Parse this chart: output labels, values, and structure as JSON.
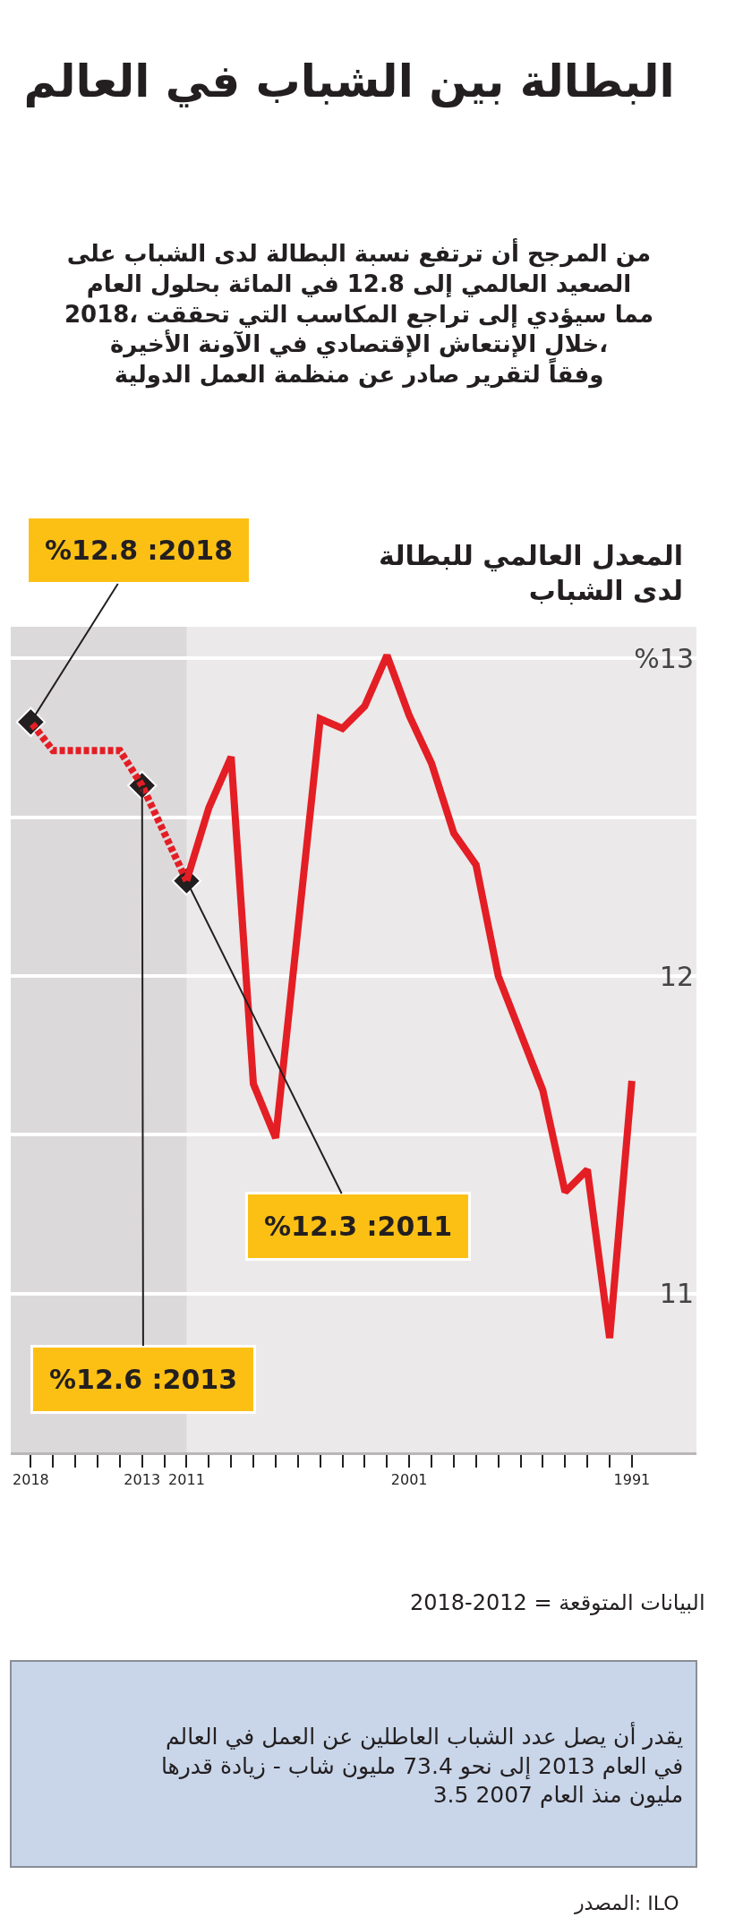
{
  "chart_data": {
    "type": "line",
    "title": "البطالة بين الشباب في العالم",
    "subtitle": "من المرجح أن ترتفع نسبة البطالة لدى الشباب على الصعيد العالمي إلى 12.8 في المائة بحلول العام 2018، مما سيؤدي إلى تراجع المكاسب التي تحققت خلال الإنتعاش الإقتصادي في الآونة الأخيرة، وفقاً لتقرير صادر عن منظمة العمل الدولية",
    "ylabel": "المعدل العالمي للبطالة لدى الشباب",
    "series": [
      {
        "color": "#e31e24",
        "line_style": "solid",
        "x": [
          1991,
          1992,
          1993,
          1994,
          1995,
          1996,
          1997,
          1998,
          1999,
          2000,
          2001,
          2002,
          2003,
          2004,
          2005,
          2006,
          2007,
          2008,
          2009,
          2010,
          2011
        ],
        "values": [
          11.67,
          10.86,
          11.39,
          11.32,
          11.64,
          11.82,
          12.0,
          12.35,
          12.45,
          12.67,
          12.82,
          13.01,
          12.85,
          12.78,
          12.81,
          12.15,
          11.49,
          11.66,
          12.69,
          12.53,
          12.3
        ]
      },
      {
        "color": "#e31e24",
        "line_style": "dashed",
        "x": [
          2011,
          2012,
          2013,
          2014,
          2015,
          2016,
          2017,
          2018
        ],
        "values": [
          12.3,
          12.45,
          12.6,
          12.71,
          12.71,
          12.71,
          12.71,
          12.8
        ]
      },
      {
        "type": "scatter",
        "color": "#231f20",
        "marker": "diamond",
        "x": [
          2011,
          2013,
          2018
        ],
        "values": [
          12.3,
          12.6,
          12.8
        ]
      }
    ],
    "xlim": [
      2018.9,
      1988.1
    ],
    "xticks": [
      1991,
      {
        "value": 1992,
        "label": null
      },
      {
        "value": 1993,
        "label": null
      },
      {
        "value": 1994,
        "label": null
      },
      {
        "value": 1995,
        "label": null
      },
      {
        "value": 1996,
        "label": null
      },
      {
        "value": 1997,
        "label": null
      },
      {
        "value": 1998,
        "label": null
      },
      {
        "value": 1999,
        "label": null
      },
      {
        "value": 2000,
        "label": null
      },
      2001,
      {
        "value": 2002,
        "label": null
      },
      {
        "value": 2003,
        "label": null
      },
      {
        "value": 2004,
        "label": null
      },
      {
        "value": 2005,
        "label": null
      },
      {
        "value": 2006,
        "label": null
      },
      {
        "value": 2007,
        "label": null
      },
      {
        "value": 2008,
        "label": null
      },
      {
        "value": 2009,
        "label": null
      },
      {
        "value": 2010,
        "label": null
      },
      2011,
      {
        "value": 2012,
        "label": null
      },
      2013,
      {
        "value": 2014,
        "label": null
      },
      {
        "value": 2015,
        "label": null
      },
      {
        "value": 2016,
        "label": null
      },
      {
        "value": 2017,
        "label": null
      },
      2018
    ],
    "ylim": [
      10.5,
      13.1
    ],
    "yticks": [
      {
        "value": 11,
        "label": "11"
      },
      {
        "value": 11.5,
        "label": null
      },
      {
        "value": 12,
        "label": "12"
      },
      {
        "value": 12.5,
        "label": null
      },
      {
        "value": 13,
        "label": "%13"
      }
    ],
    "grid": "y",
    "bands": [
      {
        "axis": "x",
        "from": 2011,
        "to": 2018.9,
        "color": "#dcd9db"
      }
    ],
    "annotations": [
      {
        "text": "%12.8 :2018",
        "x": 2018,
        "y": 12.8
      },
      {
        "text": "%12.3 :2011",
        "x": 2011,
        "y": 12.3
      },
      {
        "text": "%12.6 :2013",
        "x": 2013,
        "y": 12.6
      },
      "2018-2012 = البيانات المتوقعة",
      "يقدر أن يصل عدد الشباب العاطلين عن العمل في العالم في العام 2013 إلى نحو 73.4 مليون شاب - زيادة قدرها 3.5 مليون منذ العام 2007",
      "المصدر: ILO"
    ]
  }
}
